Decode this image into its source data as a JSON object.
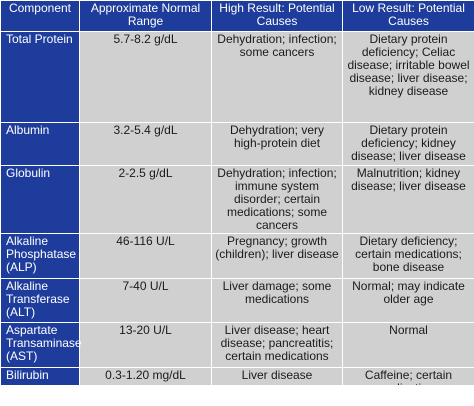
{
  "header": {
    "component": "Component",
    "range": "Approximate Normal Range",
    "high": "High Result: Potential Causes",
    "low": "Low Result: Potential Causes"
  },
  "rows": [
    {
      "component": "Total Protein",
      "range": "5.7-8.2 g/dL",
      "high": "Dehydration; infection; some cancers",
      "low": "Dietary protein deficiency; Celiac disease; irritable bowel disease; liver disease; kidney disease"
    },
    {
      "component": "Albumin",
      "range": "3.2-5.4 g/dL",
      "high": "Dehydration; very high-protein diet",
      "low": "Dietary protein deficiency; kidney disease; liver disease"
    },
    {
      "component": "Globulin",
      "range": "2-2.5 g/dL",
      "high": "Dehydration; infection; immune system disorder; certain medications; some cancers",
      "low": "Malnutrition; kidney disease; liver disease"
    },
    {
      "component": "Alkaline Phosphatase (ALP)",
      "range": "46-116 U/L",
      "high": "Pregnancy; growth (children); liver disease",
      "low": "Dietary deficiency; certain medications; bone disease"
    },
    {
      "component": "Alkaline Transferase (ALT)",
      "range": "7-40 U/L",
      "high": "Liver damage; some medications",
      "low": "Normal; may indicate older age"
    },
    {
      "component": "Aspartate Transaminase (AST)",
      "range": "13-20 U/L",
      "high": "Liver disease; heart disease; pancreatitis; certain medications",
      "low": "Normal"
    },
    {
      "component": "Bilirubin",
      "range": "0.3-1.20 mg/dL",
      "high": "Liver disease",
      "low": "Caffeine; certain medications"
    }
  ]
}
